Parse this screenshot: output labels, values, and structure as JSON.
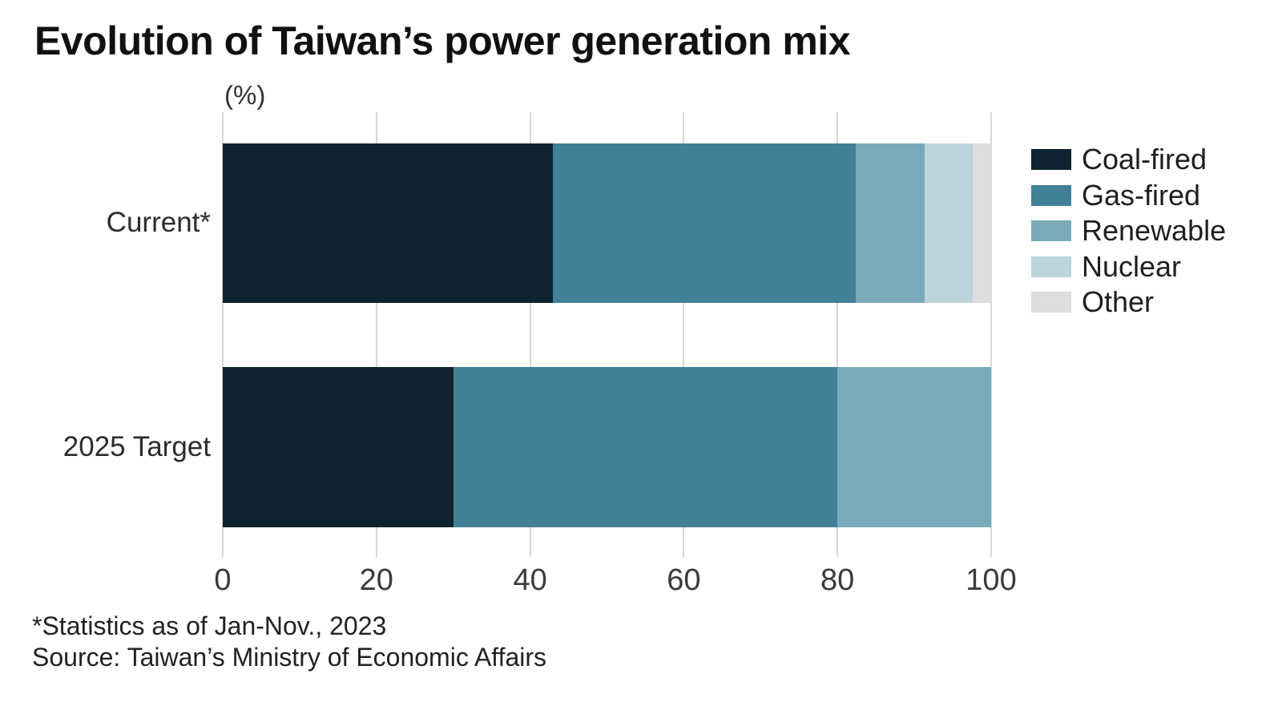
{
  "title": "Evolution of Taiwan’s power generation mix",
  "axis_unit_label": "(%)",
  "footnote": "*Statistics as of Jan-Nov., 2023",
  "source": "Source: Taiwan’s Ministry of Economic Affairs",
  "chart_data": {
    "type": "bar",
    "orientation": "horizontal",
    "stacked": true,
    "title": "Evolution of Taiwan’s power generation mix",
    "xlabel": "(%)",
    "xlim": [
      0,
      100
    ],
    "xticks": [
      0,
      20,
      40,
      60,
      80,
      100
    ],
    "grid": true,
    "legend_position": "right",
    "categories": [
      "Current*",
      "2025 Target"
    ],
    "series": [
      {
        "name": "Coal-fired",
        "color": "#0e232f",
        "values": [
          43.0,
          30
        ]
      },
      {
        "name": "Gas-fired",
        "color": "#418096",
        "values": [
          39.4,
          50
        ]
      },
      {
        "name": "Renewable",
        "color": "#7aaaba",
        "values": [
          8.9,
          20
        ]
      },
      {
        "name": "Nuclear",
        "color": "#bcd4db",
        "values": [
          6.3,
          0
        ]
      },
      {
        "name": "Other",
        "color": "#dbdddf",
        "values": [
          2.4,
          0
        ]
      }
    ],
    "footnote": "*Statistics as of Jan-Nov., 2023",
    "source": "Source: Taiwan’s Ministry of Economic Affairs"
  }
}
